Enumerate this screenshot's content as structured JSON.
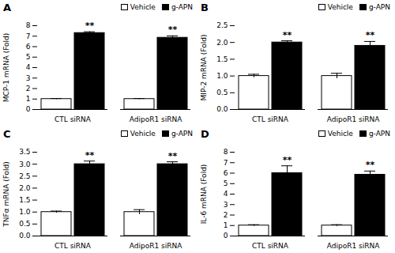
{
  "chart_data": [
    {
      "type": "bar",
      "title": "A",
      "ylabel": "MCP-1 mRNA (Fold)",
      "categories": [
        "CTL siRNA",
        "AdipoR1 siRNA"
      ],
      "series": [
        {
          "name": "Vehicle",
          "color": "white",
          "values": [
            1.0,
            1.0
          ],
          "errors": [
            0.05,
            0.05
          ]
        },
        {
          "name": "g-APN",
          "color": "black",
          "values": [
            7.3,
            6.85
          ],
          "errors": [
            0.12,
            0.18
          ]
        }
      ],
      "annotations": [
        {
          "text": "**",
          "series": "g-APN",
          "category": "CTL siRNA"
        },
        {
          "text": "**",
          "series": "g-APN",
          "category": "AdipoR1 siRNA"
        }
      ],
      "ylim": [
        0,
        8
      ],
      "yticks": [
        0,
        1,
        2,
        3,
        4,
        5,
        6,
        7,
        8
      ],
      "legend": "upper right",
      "grid": false
    },
    {
      "type": "bar",
      "title": "B",
      "ylabel": "MIP-2 mRNA (Fold)",
      "categories": [
        "CTL siRNA",
        "AdipoR1 siRNA"
      ],
      "series": [
        {
          "name": "Vehicle",
          "color": "white",
          "values": [
            1.0,
            1.0
          ],
          "errors": [
            0.05,
            0.08
          ]
        },
        {
          "name": "g-APN",
          "color": "black",
          "values": [
            2.0,
            1.9
          ],
          "errors": [
            0.05,
            0.13
          ]
        }
      ],
      "annotations": [
        {
          "text": "**",
          "series": "g-APN",
          "category": "CTL siRNA"
        },
        {
          "text": "**",
          "series": "g-APN",
          "category": "AdipoR1 siRNA"
        }
      ],
      "ylim": [
        0,
        2.5
      ],
      "yticks": [
        {
          "value": 0,
          "label": "0.0"
        },
        0.5,
        {
          "value": 1,
          "label": "1.0"
        },
        1.5,
        {
          "value": 2,
          "label": "2.0"
        },
        2.5
      ],
      "legend": "upper right",
      "grid": false
    },
    {
      "type": "bar",
      "title": "C",
      "ylabel": "TNFα mRNA (Fold)",
      "categories": [
        "CTL siRNA",
        "AdipoR1 siRNA"
      ],
      "series": [
        {
          "name": "Vehicle",
          "color": "white",
          "values": [
            1.0,
            1.0
          ],
          "errors": [
            0.04,
            0.1
          ]
        },
        {
          "name": "g-APN",
          "color": "black",
          "values": [
            3.0,
            3.0
          ],
          "errors": [
            0.13,
            0.1
          ]
        }
      ],
      "annotations": [
        {
          "text": "**",
          "series": "g-APN",
          "category": "CTL siRNA"
        },
        {
          "text": "**",
          "series": "g-APN",
          "category": "AdipoR1 siRNA"
        }
      ],
      "ylim": [
        0,
        3.5
      ],
      "yticks": [
        {
          "value": 0,
          "label": "0.0"
        },
        0.5,
        {
          "value": 1,
          "label": "1.0"
        },
        1.5,
        {
          "value": 2,
          "label": "2.0"
        },
        2.5,
        {
          "value": 3,
          "label": "3.0"
        },
        3.5
      ],
      "legend": "upper right",
      "grid": false
    },
    {
      "type": "bar",
      "title": "D",
      "ylabel": "IL-6 mRNA (Fold)",
      "categories": [
        "CTL siRNA",
        "AdipoR1 siRNA"
      ],
      "series": [
        {
          "name": "Vehicle",
          "color": "white",
          "values": [
            1.0,
            1.0
          ],
          "errors": [
            0.08,
            0.08
          ]
        },
        {
          "name": "g-APN",
          "color": "black",
          "values": [
            6.0,
            5.85
          ],
          "errors": [
            0.7,
            0.35
          ]
        }
      ],
      "annotations": [
        {
          "text": "**",
          "series": "g-APN",
          "category": "CTL siRNA"
        },
        {
          "text": "**",
          "series": "g-APN",
          "category": "AdipoR1 siRNA"
        }
      ],
      "ylim": [
        0,
        8
      ],
      "yticks": [
        0,
        1,
        2,
        3,
        4,
        5,
        6,
        7,
        8
      ],
      "legend": "upper right",
      "grid": false
    }
  ]
}
